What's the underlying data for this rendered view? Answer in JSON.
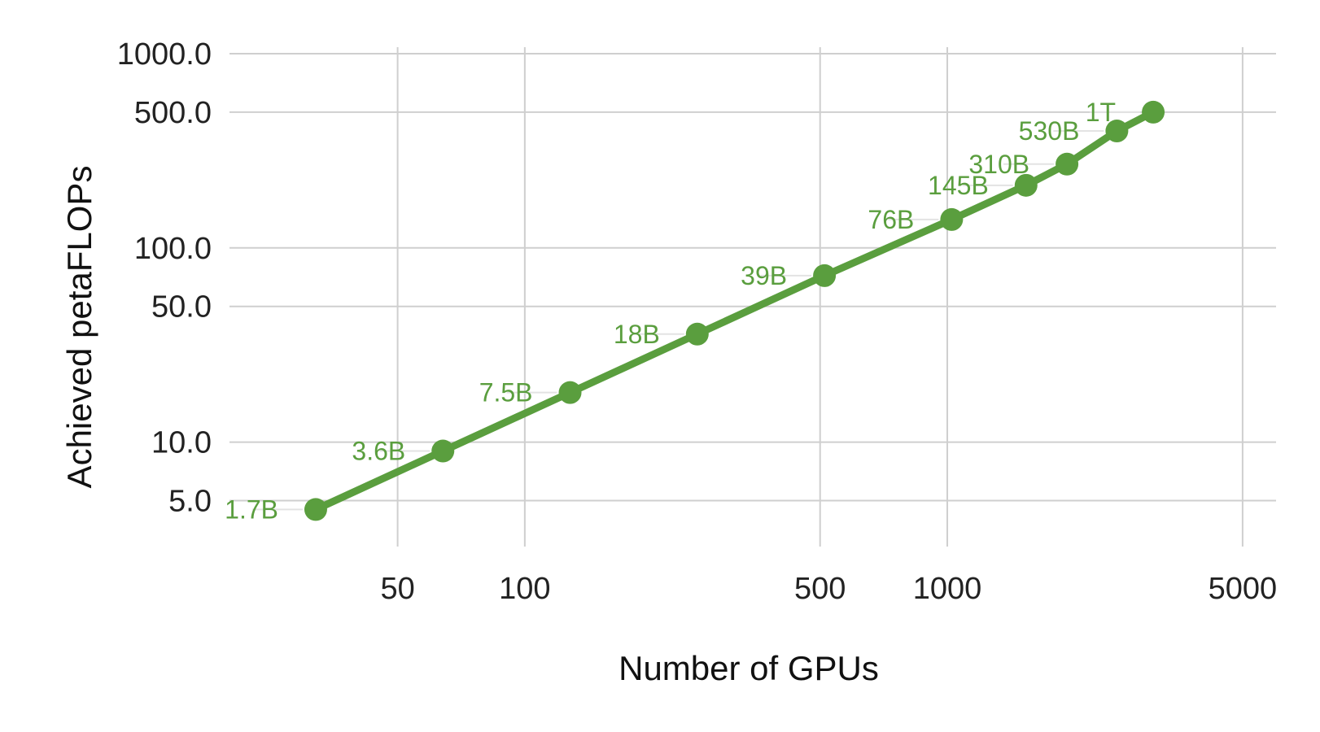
{
  "chart_data": {
    "type": "line",
    "xlabel": "Number of GPUs",
    "ylabel": "Achieved petaFLOPs",
    "xscale": "log",
    "yscale": "log",
    "grid": true,
    "legend": "none",
    "xlim": [
      20,
      6000
    ],
    "ylim": [
      2.9,
      1000
    ],
    "xticks": [
      50,
      100,
      500,
      1000,
      5000
    ],
    "xtick_labels": [
      "50",
      "100",
      "500",
      "1000",
      "5000"
    ],
    "yticks": [
      5,
      10,
      50,
      100,
      500,
      1000
    ],
    "ytick_labels": [
      "5.0",
      "10.0",
      "50.0",
      "100.0",
      "500.0",
      "1000.0"
    ],
    "color": "#5a9e3e",
    "series": [
      {
        "x": [
          32,
          64,
          128,
          256,
          512,
          1024,
          1536,
          1920,
          2520,
          3072
        ],
        "y": [
          4.5,
          9,
          18,
          36,
          72,
          140,
          210,
          270,
          400,
          500
        ],
        "labels": [
          "1.7B",
          "3.6B",
          "7.5B",
          "18B",
          "39B",
          "76B",
          "145B",
          "310B",
          "530B",
          "1T"
        ]
      }
    ]
  }
}
